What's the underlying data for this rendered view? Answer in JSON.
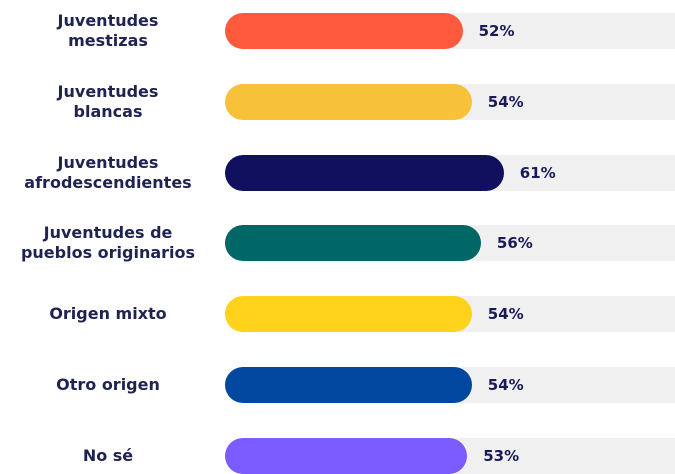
{
  "chart_data": {
    "type": "bar",
    "orientation": "horizontal",
    "categories": [
      "Juventudes\nmestizas",
      "Juventudes\nblancas",
      "Juventudes\nafrodescendientes",
      "Juventudes de\npueblos originarios",
      "Origen mixto",
      "Otro origen",
      "No sé"
    ],
    "values": [
      52,
      54,
      61,
      56,
      54,
      54,
      53
    ],
    "value_labels": [
      "52%",
      "54%",
      "61%",
      "56%",
      "54%",
      "54%",
      "53%"
    ],
    "colors": [
      "#ff5a3d",
      "#f8c13a",
      "#10105e",
      "#006666",
      "#ffd21c",
      "#0047a0",
      "#7b5cff"
    ],
    "track_color": "#f0f0f0",
    "xlim": [
      0,
      100
    ]
  }
}
